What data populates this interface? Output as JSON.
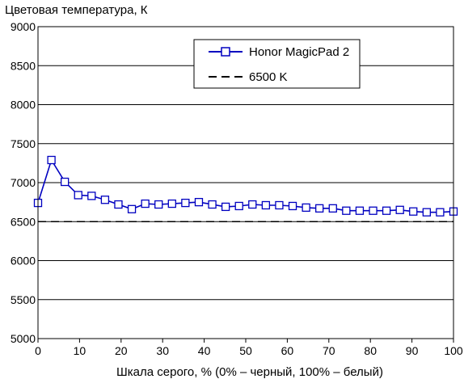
{
  "chart_data": {
    "type": "line",
    "title": "",
    "ylabel": "Цветовая температура, К",
    "xlabel": "Шкала серого, % (0% – черный, 100% – белый)",
    "xlim": [
      0,
      100
    ],
    "ylim": [
      5000,
      9000
    ],
    "x_ticks": [
      0,
      10,
      20,
      30,
      40,
      50,
      60,
      70,
      80,
      90,
      100
    ],
    "y_ticks": [
      5000,
      5500,
      6000,
      6500,
      7000,
      7500,
      8000,
      8500,
      9000
    ],
    "grid": "horizontal",
    "legend_position": "top-right",
    "series": [
      {
        "name": "Honor MagicPad 2",
        "color": "#0000c0",
        "marker": "square",
        "x": [
          0,
          3.23,
          6.45,
          9.68,
          12.9,
          16.13,
          19.35,
          22.58,
          25.81,
          29.03,
          32.26,
          35.48,
          38.71,
          41.94,
          45.16,
          48.39,
          51.61,
          54.84,
          58.06,
          61.29,
          64.52,
          67.74,
          70.97,
          74.19,
          77.42,
          80.65,
          83.87,
          87.1,
          90.32,
          93.55,
          96.77,
          100
        ],
        "values": [
          6740,
          7290,
          7010,
          6840,
          6830,
          6780,
          6720,
          6660,
          6730,
          6720,
          6730,
          6740,
          6750,
          6720,
          6690,
          6700,
          6720,
          6710,
          6710,
          6700,
          6680,
          6670,
          6670,
          6640,
          6640,
          6640,
          6640,
          6650,
          6630,
          6620,
          6620,
          6630
        ]
      },
      {
        "name": "6500 K",
        "color": "#000000",
        "style": "dashed",
        "x": [
          0,
          100
        ],
        "values": [
          6500,
          6500
        ]
      }
    ]
  }
}
